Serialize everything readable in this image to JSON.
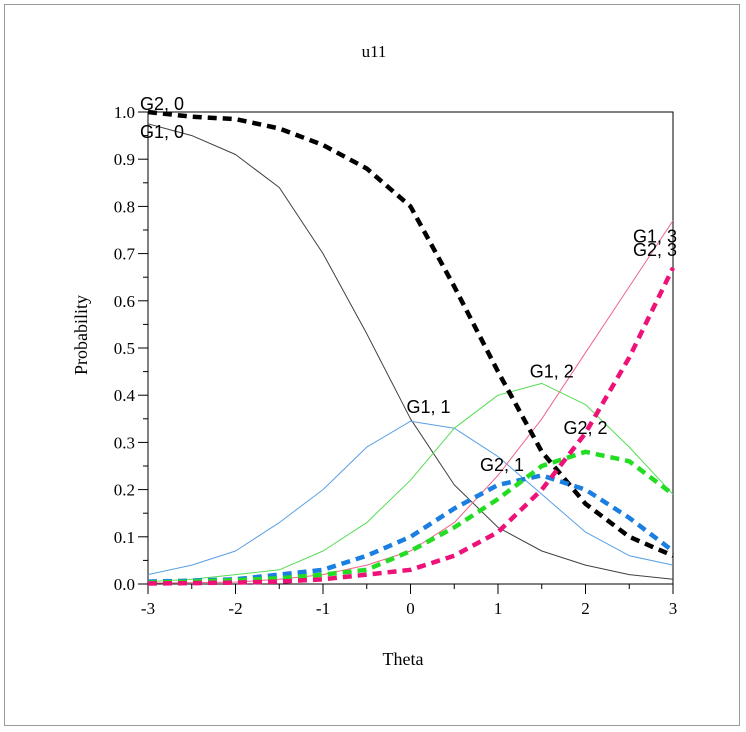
{
  "chart_data": {
    "type": "line",
    "title": "u11",
    "xlabel": "Theta",
    "ylabel": "Probability",
    "xlim": [
      -3,
      3
    ],
    "ylim": [
      0,
      1
    ],
    "x_ticks": [
      "-3",
      "-2",
      "-1",
      "0",
      "1",
      "2",
      "3"
    ],
    "y_ticks": [
      "0.0",
      "0.1",
      "0.2",
      "0.3",
      "0.4",
      "0.5",
      "0.6",
      "0.7",
      "0.8",
      "0.9",
      "1.0"
    ],
    "grid": false,
    "legend": "none",
    "x": [
      -3,
      -2.5,
      -2,
      -1.5,
      -1,
      -0.5,
      0,
      0.5,
      1,
      1.5,
      2,
      2.5,
      3
    ],
    "series": [
      {
        "name": "G1, 0",
        "label": "G1, 0",
        "style": "solid",
        "color": "#404040",
        "values": [
          0.975,
          0.95,
          0.91,
          0.84,
          0.7,
          0.53,
          0.35,
          0.21,
          0.12,
          0.07,
          0.04,
          0.02,
          0.01
        ]
      },
      {
        "name": "G1, 1",
        "label": "G1, 1",
        "style": "solid",
        "color": "#5aa0e6",
        "values": [
          0.02,
          0.04,
          0.07,
          0.13,
          0.2,
          0.29,
          0.345,
          0.33,
          0.27,
          0.19,
          0.11,
          0.06,
          0.04
        ]
      },
      {
        "name": "G1, 2",
        "label": "G1, 2",
        "style": "solid",
        "color": "#55dd55",
        "values": [
          0.005,
          0.01,
          0.02,
          0.03,
          0.07,
          0.13,
          0.22,
          0.33,
          0.4,
          0.425,
          0.38,
          0.29,
          0.19
        ]
      },
      {
        "name": "G1, 3",
        "label": "G1, 3",
        "style": "solid",
        "color": "#ee6688",
        "values": [
          0.002,
          0.003,
          0.004,
          0.01,
          0.02,
          0.04,
          0.07,
          0.13,
          0.23,
          0.35,
          0.49,
          0.63,
          0.77
        ]
      },
      {
        "name": "G2, 0",
        "label": "G2, 0",
        "style": "dashed",
        "color": "#000000",
        "values": [
          1.0,
          0.99,
          0.985,
          0.965,
          0.93,
          0.88,
          0.8,
          0.63,
          0.45,
          0.28,
          0.17,
          0.1,
          0.06
        ]
      },
      {
        "name": "G2, 1",
        "label": "G2, 1",
        "style": "dashed",
        "color": "#1a7fe0",
        "values": [
          0.005,
          0.007,
          0.01,
          0.02,
          0.03,
          0.06,
          0.1,
          0.16,
          0.21,
          0.23,
          0.2,
          0.14,
          0.07
        ]
      },
      {
        "name": "G2, 2",
        "label": "G2, 2",
        "style": "dashed",
        "color": "#22dd22",
        "values": [
          0.003,
          0.005,
          0.008,
          0.012,
          0.02,
          0.03,
          0.07,
          0.12,
          0.18,
          0.25,
          0.28,
          0.26,
          0.19
        ]
      },
      {
        "name": "G2, 3",
        "label": "G2, 3",
        "style": "dashed",
        "color": "#ee1177",
        "values": [
          0.001,
          0.002,
          0.003,
          0.005,
          0.01,
          0.02,
          0.03,
          0.06,
          0.11,
          0.2,
          0.32,
          0.48,
          0.67
        ]
      }
    ]
  }
}
